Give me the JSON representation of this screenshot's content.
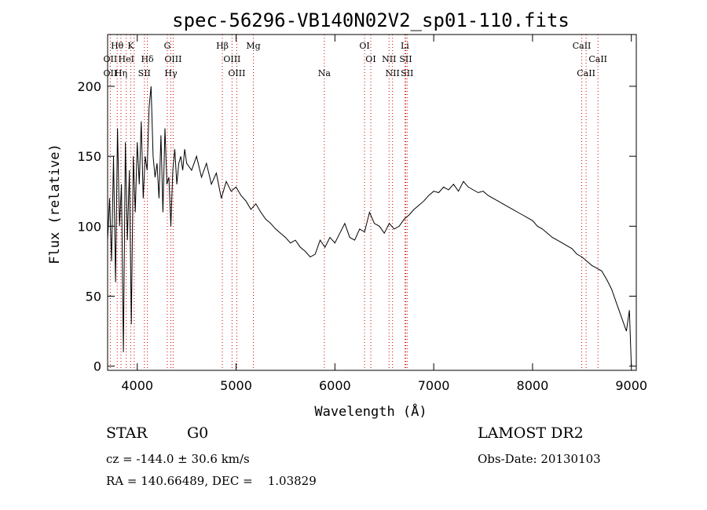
{
  "chart_data": {
    "type": "line",
    "title": "spec-56296-VB140N02V2_sp01-110.fits",
    "xlabel": "Wavelength (Å)",
    "ylabel": "Flux (relative)",
    "xlim": [
      3700,
      9050
    ],
    "ylim": [
      -3,
      237
    ],
    "x_ticks": [
      4000,
      5000,
      6000,
      7000,
      8000,
      9000
    ],
    "y_ticks": [
      0,
      50,
      100,
      150,
      200
    ],
    "line_color": "#000000",
    "marker_color": "#cc0000",
    "grid": false,
    "series": [
      {
        "x": [
          3700,
          3720,
          3740,
          3760,
          3780,
          3800,
          3820,
          3840,
          3860,
          3880,
          3900,
          3920,
          3940,
          3960,
          3980,
          4000,
          4020,
          4040,
          4060,
          4080,
          4100,
          4120,
          4140,
          4160,
          4180,
          4200,
          4220,
          4240,
          4260,
          4280,
          4300,
          4320,
          4340,
          4360,
          4380,
          4400,
          4420,
          4440,
          4460,
          4480,
          4500,
          4550,
          4600,
          4650,
          4700,
          4750,
          4800,
          4850,
          4900,
          4950,
          5000,
          5050,
          5100,
          5150,
          5200,
          5250,
          5300,
          5350,
          5400,
          5450,
          5500,
          5550,
          5600,
          5650,
          5700,
          5750,
          5800,
          5850,
          5900,
          5950,
          6000,
          6050,
          6100,
          6150,
          6200,
          6250,
          6300,
          6350,
          6400,
          6450,
          6500,
          6550,
          6600,
          6650,
          6700,
          6750,
          6800,
          6850,
          6900,
          6950,
          7000,
          7050,
          7100,
          7150,
          7200,
          7250,
          7300,
          7350,
          7400,
          7450,
          7500,
          7550,
          7600,
          7650,
          7700,
          7750,
          7800,
          7850,
          7900,
          7950,
          8000,
          8050,
          8100,
          8150,
          8200,
          8250,
          8300,
          8350,
          8400,
          8450,
          8500,
          8550,
          8600,
          8650,
          8700,
          8750,
          8800,
          8850,
          8900,
          8950,
          8980,
          9000
        ],
        "y": [
          90,
          120,
          75,
          150,
          60,
          170,
          100,
          130,
          10,
          160,
          90,
          140,
          30,
          150,
          110,
          160,
          130,
          175,
          120,
          150,
          140,
          185,
          200,
          150,
          135,
          145,
          120,
          165,
          110,
          170,
          130,
          135,
          100,
          140,
          155,
          130,
          145,
          150,
          140,
          155,
          145,
          140,
          150,
          135,
          145,
          130,
          138,
          120,
          132,
          125,
          128,
          122,
          118,
          112,
          116,
          110,
          105,
          102,
          98,
          95,
          92,
          88,
          90,
          85,
          82,
          78,
          80,
          90,
          85,
          92,
          88,
          95,
          102,
          92,
          90,
          98,
          96,
          110,
          102,
          100,
          95,
          102,
          98,
          100,
          105,
          108,
          112,
          115,
          118,
          122,
          125,
          124,
          128,
          126,
          130,
          125,
          132,
          128,
          126,
          124,
          125,
          122,
          120,
          118,
          116,
          114,
          112,
          110,
          108,
          106,
          104,
          100,
          98,
          95,
          92,
          90,
          88,
          86,
          84,
          80,
          78,
          75,
          72,
          70,
          68,
          62,
          55,
          45,
          35,
          25,
          40,
          0
        ]
      }
    ],
    "line_labels": [
      {
        "text": "Hθ",
        "wl": 3797,
        "row": 0
      },
      {
        "text": "K",
        "wl": 3934,
        "row": 0
      },
      {
        "text": "G",
        "wl": 4304,
        "row": 0
      },
      {
        "text": "Hβ",
        "wl": 4861,
        "row": 0
      },
      {
        "text": "Mg",
        "wl": 5175,
        "row": 0
      },
      {
        "text": "OI",
        "wl": 6300,
        "row": 0
      },
      {
        "text": "Li",
        "wl": 6708,
        "row": 0
      },
      {
        "text": "CaII",
        "wl": 8498,
        "row": 0
      },
      {
        "text": "OII",
        "wl": 3727,
        "row": 1
      },
      {
        "text": "HeI",
        "wl": 3889,
        "row": 1
      },
      {
        "text": "Hδ",
        "wl": 4102,
        "row": 1
      },
      {
        "text": "OIII",
        "wl": 4363,
        "row": 1
      },
      {
        "text": "OIII",
        "wl": 4959,
        "row": 1
      },
      {
        "text": "OI",
        "wl": 6363,
        "row": 1
      },
      {
        "text": "NII",
        "wl": 6548,
        "row": 1
      },
      {
        "text": "SII",
        "wl": 6717,
        "row": 1
      },
      {
        "text": "CaII",
        "wl": 8662,
        "row": 1
      },
      {
        "text": "OII",
        "wl": 3727,
        "row": 2
      },
      {
        "text": "Hη",
        "wl": 3835,
        "row": 2
      },
      {
        "text": "SII",
        "wl": 4072,
        "row": 2
      },
      {
        "text": "Hγ",
        "wl": 4340,
        "row": 2
      },
      {
        "text": "OIII",
        "wl": 5007,
        "row": 2
      },
      {
        "text": "Na",
        "wl": 5893,
        "row": 2
      },
      {
        "text": "NII",
        "wl": 6583,
        "row": 2
      },
      {
        "text": "SII",
        "wl": 6731,
        "row": 2
      },
      {
        "text": "CaII",
        "wl": 8542,
        "row": 2
      }
    ],
    "marker_lines": [
      3727,
      3797,
      3835,
      3889,
      3934,
      3969,
      4072,
      4102,
      4304,
      4340,
      4363,
      4861,
      4959,
      5007,
      5175,
      5893,
      6300,
      6363,
      6548,
      6583,
      6708,
      6717,
      6731,
      8498,
      8542,
      8662
    ]
  },
  "info": {
    "object_type": "STAR",
    "subclass": "G0",
    "survey": "LAMOST DR2",
    "redshift": "cz = -144.0 ± 30.6 km/s",
    "obs_date": "Obs-Date: 20130103",
    "coords": "RA = 140.66489, DEC =    1.03829"
  }
}
